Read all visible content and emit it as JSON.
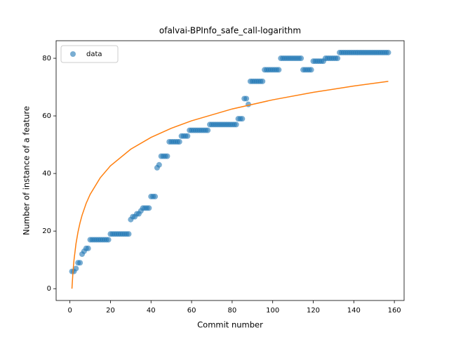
{
  "chart_data": {
    "type": "scatter",
    "title": "ofalvai-BPInfo_safe_call-logarithm",
    "xlabel": "Commit number",
    "ylabel": "Number of instance of a feature",
    "xlim": [
      -6.8,
      164.8
    ],
    "ylim": [
      -4.1,
      86.1
    ],
    "xticks": [
      0,
      20,
      40,
      60,
      80,
      100,
      120,
      140,
      160
    ],
    "yticks": [
      0,
      20,
      40,
      60,
      80
    ],
    "legend": "upper left",
    "series": [
      {
        "name": "data",
        "color": "#1f77b4",
        "kind": "points",
        "x": [
          1,
          2,
          3,
          4,
          5,
          6,
          7,
          8,
          9,
          10,
          11,
          12,
          13,
          14,
          15,
          16,
          17,
          18,
          19,
          20,
          21,
          22,
          23,
          24,
          25,
          26,
          27,
          28,
          29,
          30,
          31,
          32,
          33,
          34,
          35,
          36,
          37,
          38,
          39,
          40,
          41,
          42,
          43,
          44,
          45,
          46,
          47,
          48,
          49,
          50,
          51,
          52,
          53,
          54,
          55,
          56,
          57,
          58,
          59,
          60,
          61,
          62,
          63,
          64,
          65,
          66,
          67,
          68,
          69,
          70,
          71,
          72,
          73,
          74,
          75,
          76,
          77,
          78,
          79,
          80,
          81,
          82,
          83,
          84,
          85,
          86,
          87,
          88,
          89,
          90,
          91,
          92,
          93,
          94,
          95,
          96,
          97,
          98,
          99,
          100,
          101,
          102,
          103,
          104,
          105,
          106,
          107,
          108,
          109,
          110,
          111,
          112,
          113,
          114,
          115,
          116,
          117,
          118,
          119,
          120,
          121,
          122,
          123,
          124,
          125,
          126,
          127,
          128,
          129,
          130,
          131,
          132,
          133,
          134,
          135,
          136,
          137,
          138,
          139,
          140,
          141,
          142,
          143,
          144,
          145,
          146,
          147,
          148,
          149,
          150,
          151,
          152,
          153,
          154,
          155,
          156,
          157
        ],
        "values": [
          6,
          6,
          7,
          9,
          9,
          12,
          13,
          14,
          14,
          17,
          17,
          17,
          17,
          17,
          17,
          17,
          17,
          17,
          17,
          19,
          19,
          19,
          19,
          19,
          19,
          19,
          19,
          19,
          19,
          24,
          25,
          25,
          26,
          26,
          27,
          28,
          28,
          28,
          28,
          32,
          32,
          32,
          42,
          43,
          46,
          46,
          46,
          46,
          51,
          51,
          51,
          51,
          51,
          51,
          53,
          53,
          53,
          53,
          55,
          55,
          55,
          55,
          55,
          55,
          55,
          55,
          55,
          55,
          57,
          57,
          57,
          57,
          57,
          57,
          57,
          57,
          57,
          57,
          57,
          57,
          57,
          57,
          59,
          59,
          59,
          66,
          66,
          64,
          72,
          72,
          72,
          72,
          72,
          72,
          72,
          76,
          76,
          76,
          76,
          76,
          76,
          76,
          76,
          80,
          80,
          80,
          80,
          80,
          80,
          80,
          80,
          80,
          80,
          80,
          76,
          76,
          76,
          76,
          76,
          79,
          79,
          79,
          79,
          79,
          79,
          80,
          80,
          80,
          80,
          80,
          80,
          80,
          82,
          82,
          82,
          82,
          82,
          82,
          82,
          82,
          82,
          82,
          82,
          82,
          82,
          82,
          82,
          82,
          82,
          82,
          82,
          82,
          82,
          82,
          82,
          82,
          82
        ]
      },
      {
        "color": "#ff7f0e",
        "kind": "line",
        "x": [
          1,
          1.5,
          2,
          3,
          4,
          5,
          6,
          8,
          10,
          15,
          20,
          30,
          40,
          50,
          60,
          80,
          100,
          120,
          140,
          157
        ],
        "values": [
          0,
          5.77,
          9.87,
          15.64,
          19.74,
          22.92,
          25.51,
          29.61,
          32.79,
          38.56,
          42.66,
          48.43,
          52.53,
          55.71,
          58.3,
          62.4,
          65.58,
          68.17,
          70.37,
          72.0
        ]
      }
    ]
  }
}
